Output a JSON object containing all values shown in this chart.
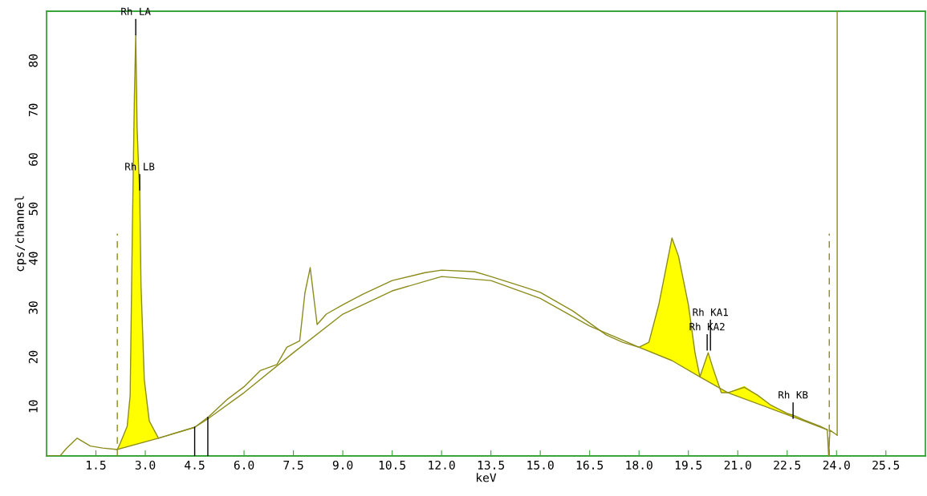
{
  "chart_data": {
    "type": "line",
    "xlabel": "keV",
    "ylabel": "cps/channel",
    "xlim": [
      0,
      26.7
    ],
    "ylim": [
      0,
      90
    ],
    "xticks": [
      {
        "value": 1.5,
        "label": "1.5"
      },
      {
        "value": 3.0,
        "label": "3.0"
      },
      {
        "value": 4.5,
        "label": "4.5"
      },
      {
        "value": 6.0,
        "label": "6.0"
      },
      {
        "value": 7.5,
        "label": "7.5"
      },
      {
        "value": 9.0,
        "label": "9.0"
      },
      {
        "value": 10.5,
        "label": "10.5"
      },
      {
        "value": 12.0,
        "label": "12.0"
      },
      {
        "value": 13.5,
        "label": "13.5"
      },
      {
        "value": 15.0,
        "label": "15.0"
      },
      {
        "value": 16.5,
        "label": "16.5"
      },
      {
        "value": 18.0,
        "label": "18.0"
      },
      {
        "value": 19.5,
        "label": "19.5"
      },
      {
        "value": 21.0,
        "label": "21.0"
      },
      {
        "value": 22.5,
        "label": "22.5"
      },
      {
        "value": 24.0,
        "label": "24.0"
      },
      {
        "value": 25.5,
        "label": "25.5"
      }
    ],
    "yticks": [
      10,
      20,
      30,
      40,
      50,
      60,
      70,
      80
    ],
    "grid": false,
    "marker": "none",
    "series": [
      {
        "type": "area",
        "color": "#ffff00",
        "x": [
          2.15,
          2.24,
          2.45,
          2.54,
          2.61,
          2.67,
          2.71,
          2.75,
          2.8,
          2.83,
          2.87,
          2.97,
          3.12,
          3.4
        ],
        "values": [
          1.3,
          2.6,
          6,
          12.2,
          47,
          73,
          85.2,
          66.6,
          57.7,
          53.8,
          34.5,
          15.4,
          7.1,
          3.6
        ]
      },
      {
        "type": "area",
        "color": "#ffff00",
        "x": [
          18.0,
          18.3,
          18.6,
          19.0,
          19.2,
          19.5,
          19.7,
          19.85,
          20.1,
          20.25,
          20.5,
          20.7,
          21.2,
          21.6,
          22.0,
          22.5,
          22.7,
          23.0
        ],
        "values": [
          22.0,
          23.0,
          30.6,
          44.1,
          40.4,
          30.6,
          20.9,
          16.0,
          20.9,
          17.7,
          12.8,
          12.8,
          14.2,
          12.3,
          10.3,
          8.6,
          8.2,
          7.3
        ]
      },
      {
        "color": "#8c8c1c",
        "line_style": "solid",
        "x": [
          2.15,
          3.4,
          4.5,
          4.9,
          6.0,
          7.5,
          9.0,
          10.5,
          12.0,
          13.5,
          15.0,
          16.5,
          18.0,
          19.0,
          19.85,
          20.7,
          22.0,
          23.0,
          23.72
        ],
        "values": [
          1.3,
          3.6,
          5.8,
          7.5,
          12.8,
          20.9,
          28.7,
          33.4,
          36.3,
          35.5,
          31.9,
          26.3,
          22.0,
          19.3,
          16.0,
          12.8,
          9.6,
          7.1,
          5.3
        ]
      },
      {
        "color": "#8c8c1c",
        "line_style": "solid",
        "x": [
          0.0,
          0.41,
          0.6,
          0.93,
          1.33,
          1.7,
          2.15,
          2.24,
          2.45,
          2.54,
          2.61,
          2.67,
          2.71,
          2.75,
          2.8,
          2.83,
          2.87,
          2.97,
          3.12,
          3.4,
          3.9,
          4.5,
          4.9,
          5.5,
          6.0,
          6.5,
          7.0,
          7.3,
          7.69,
          7.85,
          8.01,
          8.22,
          8.5,
          9.0,
          9.6,
          10.5,
          11.5,
          12.0,
          13.0,
          13.5,
          14.5,
          15.0,
          16.0,
          16.5,
          17.0,
          17.5,
          18.0,
          18.3,
          18.6,
          19.0,
          19.2,
          19.5,
          19.7,
          19.85,
          20.1,
          20.25,
          20.5,
          20.7,
          21.2,
          21.6,
          22.0,
          22.5,
          22.7,
          23.0,
          23.5,
          23.72,
          23.76,
          23.8,
          24.02
        ],
        "values": [
          0,
          0,
          1.5,
          3.6,
          2.0,
          1.6,
          1.3,
          2.6,
          6,
          12.2,
          47,
          73,
          85.2,
          66.6,
          57.7,
          53.8,
          34.5,
          15.4,
          7.1,
          3.6,
          4.6,
          5.8,
          7.8,
          11.5,
          14.0,
          17.3,
          18.5,
          22.0,
          23.3,
          33,
          38.1,
          26.6,
          28.7,
          30.6,
          32.7,
          35.5,
          37.1,
          37.6,
          37.3,
          36.3,
          34.2,
          33.1,
          29.3,
          26.9,
          24.5,
          23.0,
          22.0,
          23.0,
          30.6,
          44.1,
          40.4,
          30.6,
          20.9,
          16.0,
          20.9,
          17.7,
          12.8,
          12.8,
          13.9,
          12.3,
          10.3,
          8.6,
          8.2,
          7.3,
          6.0,
          5.3,
          0,
          5.2,
          4.2
        ]
      },
      {
        "type": "line",
        "color": "#8c8c1c",
        "line_style": "dashed",
        "x": [
          2.15,
          2.15
        ],
        "values": [
          0,
          45
        ]
      },
      {
        "type": "line",
        "color": "#8c8c1c",
        "line_style": "dashed",
        "x": [
          23.78,
          23.78
        ],
        "values": [
          0,
          45
        ]
      },
      {
        "type": "line",
        "color": "#8c8c1c",
        "line_style": "solid",
        "x": [
          24.02,
          24.02
        ],
        "values": [
          4.2,
          90
        ]
      },
      {
        "type": "line",
        "color": "#000000",
        "line_style": "solid",
        "x": [
          4.5,
          4.5
        ],
        "values": [
          0,
          5.8
        ]
      },
      {
        "type": "line",
        "color": "#000000",
        "line_style": "solid",
        "x": [
          4.9,
          4.9
        ],
        "values": [
          0,
          7.8
        ]
      }
    ],
    "annotations": [
      {
        "text": "Rh LA",
        "x": 2.71,
        "y": 85.2
      },
      {
        "text": "Rh LB",
        "x": 2.83,
        "y": 53.8
      },
      {
        "text": "Rh KA2",
        "x": 20.07,
        "y": 21.4
      },
      {
        "text": "Rh KA1",
        "x": 20.17,
        "y": 21.4
      },
      {
        "text": "Rh KB",
        "x": 22.68,
        "y": 7.6
      }
    ]
  }
}
